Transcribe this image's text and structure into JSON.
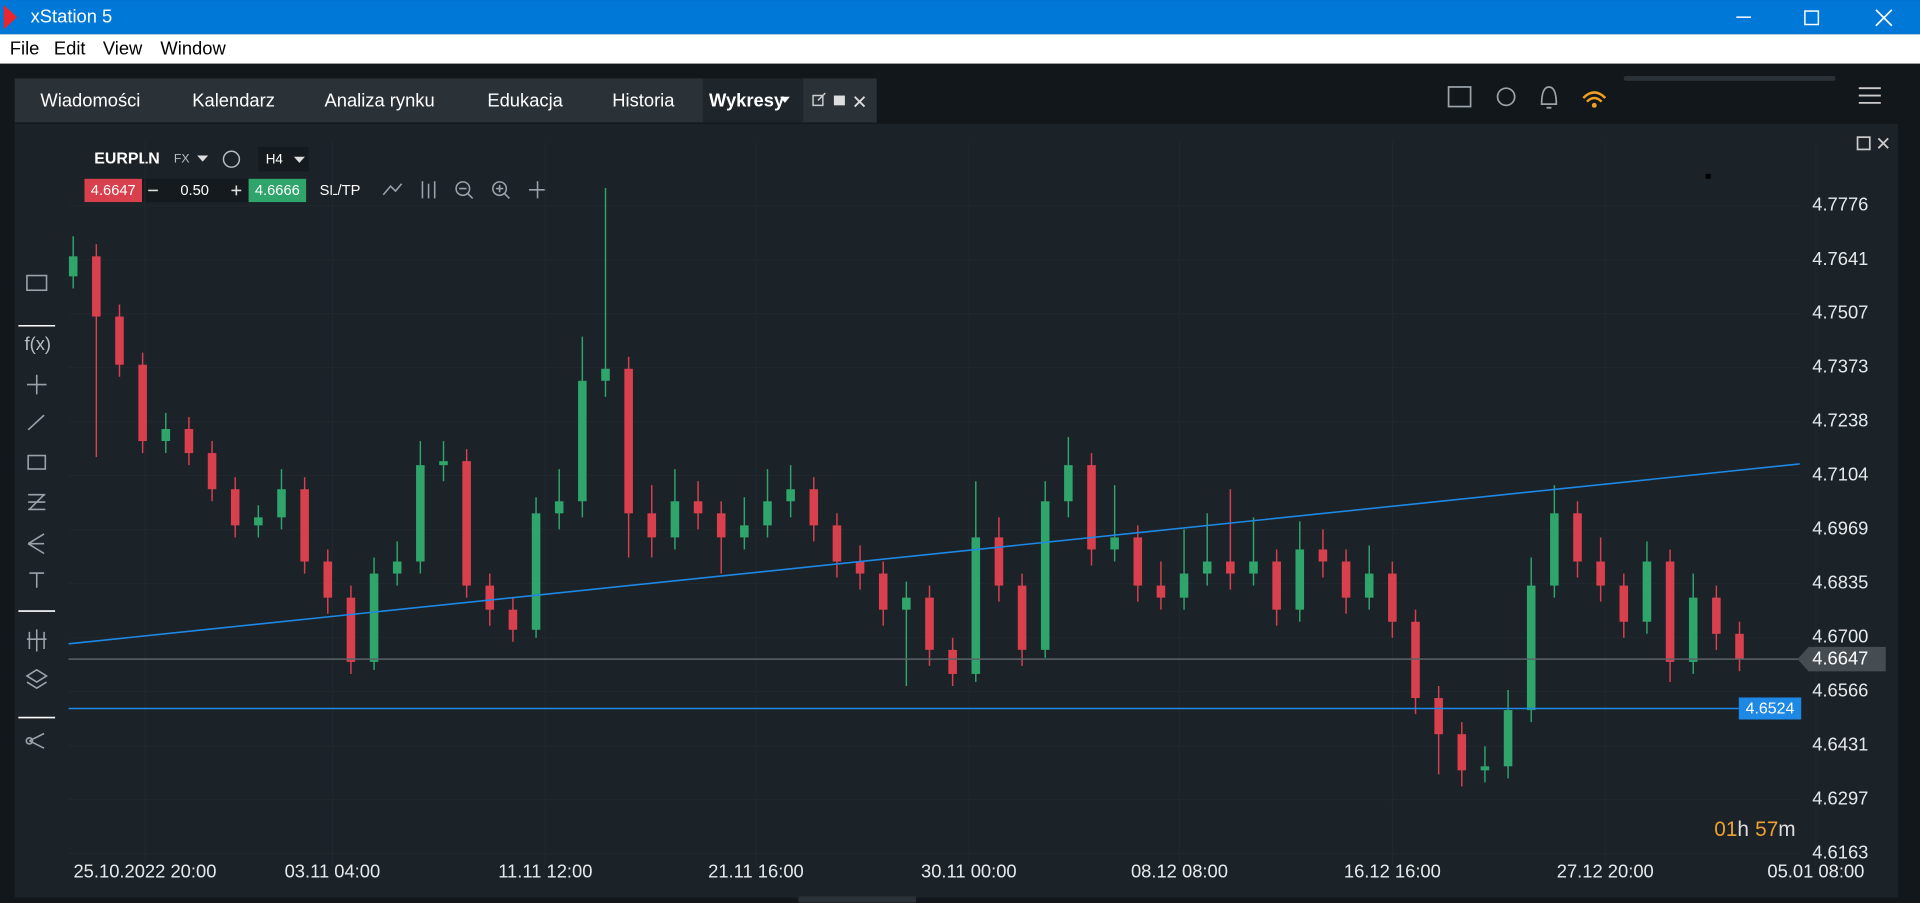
{
  "window": {
    "title": "xStation 5"
  },
  "menu": [
    "File",
    "Edit",
    "View",
    "Window"
  ],
  "tabs": [
    "Wiadomości",
    "Kalendarz",
    "Analiza rynku",
    "Edukacja",
    "Historia",
    "Wykresy"
  ],
  "chart_toolbar": {
    "symbol": "EURPLN",
    "market": "FX",
    "interval": "H4",
    "sell": "4.6647",
    "volume": "0.50",
    "buy": "4.6666",
    "sltp": "SL/TP"
  },
  "sidebar": {
    "fx": "f(x)"
  },
  "chart_data": {
    "type": "candlestick",
    "up_color": "#2fa46b",
    "down_color": "#d8404e",
    "open": [
      4.76,
      4.765,
      4.75,
      4.738,
      4.719,
      4.722,
      4.716,
      4.707,
      4.698,
      4.7,
      4.707,
      4.689,
      4.68,
      4.664,
      4.686,
      4.689,
      4.713,
      4.714,
      4.683,
      4.677,
      4.672,
      4.701,
      4.704,
      4.734,
      4.737,
      4.701,
      4.695,
      4.704,
      4.701,
      4.695,
      4.698,
      4.704,
      4.707,
      4.698,
      4.689,
      4.686,
      4.677,
      4.68,
      4.667,
      4.661,
      4.695,
      4.683,
      4.667,
      4.704,
      4.713,
      4.692,
      4.695,
      4.683,
      4.68,
      4.686,
      4.689,
      4.686,
      4.689,
      4.677,
      4.692,
      4.689,
      4.68,
      4.686,
      4.674,
      4.655,
      4.646,
      4.637,
      4.638,
      4.652,
      4.683,
      4.701,
      4.689,
      4.683,
      4.674,
      4.689,
      4.664,
      4.68,
      4.671
    ],
    "high": [
      4.77,
      4.768,
      4.753,
      4.741,
      4.726,
      4.725,
      4.719,
      4.71,
      4.703,
      4.712,
      4.71,
      4.692,
      4.683,
      4.69,
      4.694,
      4.719,
      4.719,
      4.717,
      4.686,
      4.68,
      4.705,
      4.712,
      4.745,
      4.782,
      4.74,
      4.708,
      4.712,
      4.709,
      4.704,
      4.705,
      4.712,
      4.713,
      4.71,
      4.701,
      4.693,
      4.689,
      4.684,
      4.683,
      4.67,
      4.709,
      4.7,
      4.686,
      4.709,
      4.72,
      4.716,
      4.708,
      4.698,
      4.689,
      4.697,
      4.701,
      4.707,
      4.7,
      4.692,
      4.699,
      4.697,
      4.692,
      4.693,
      4.689,
      4.677,
      4.658,
      4.649,
      4.643,
      4.657,
      4.69,
      4.708,
      4.704,
      4.695,
      4.686,
      4.694,
      4.692,
      4.686,
      4.683,
      4.674
    ],
    "low": [
      4.757,
      4.715,
      4.735,
      4.716,
      4.716,
      4.713,
      4.704,
      4.695,
      4.695,
      4.697,
      4.686,
      4.676,
      4.661,
      4.662,
      4.683,
      4.686,
      4.709,
      4.68,
      4.673,
      4.669,
      4.67,
      4.697,
      4.7,
      4.73,
      4.69,
      4.69,
      4.692,
      4.697,
      4.686,
      4.692,
      4.695,
      4.7,
      4.694,
      4.685,
      4.682,
      4.673,
      4.658,
      4.663,
      4.658,
      4.659,
      4.679,
      4.663,
      4.665,
      4.7,
      4.688,
      4.689,
      4.679,
      4.677,
      4.677,
      4.683,
      4.682,
      4.683,
      4.673,
      4.674,
      4.685,
      4.676,
      4.677,
      4.67,
      4.651,
      4.636,
      4.633,
      4.634,
      4.635,
      4.649,
      4.68,
      4.685,
      4.679,
      4.67,
      4.671,
      4.659,
      4.661,
      4.667,
      4.6617
    ],
    "close": [
      4.765,
      4.75,
      4.738,
      4.719,
      4.722,
      4.716,
      4.707,
      4.698,
      4.7,
      4.707,
      4.689,
      4.68,
      4.664,
      4.686,
      4.689,
      4.713,
      4.714,
      4.683,
      4.677,
      4.672,
      4.701,
      4.704,
      4.734,
      4.737,
      4.701,
      4.695,
      4.704,
      4.701,
      4.695,
      4.698,
      4.704,
      4.707,
      4.698,
      4.689,
      4.686,
      4.677,
      4.68,
      4.667,
      4.661,
      4.695,
      4.683,
      4.667,
      4.704,
      4.713,
      4.692,
      4.695,
      4.683,
      4.68,
      4.686,
      4.689,
      4.686,
      4.689,
      4.677,
      4.692,
      4.689,
      4.68,
      4.686,
      4.674,
      4.655,
      4.646,
      4.637,
      4.638,
      4.652,
      4.683,
      4.701,
      4.689,
      4.683,
      4.674,
      4.689,
      4.664,
      4.68,
      4.671,
      4.6647
    ],
    "xlim": [
      -0.2,
      78
    ],
    "xticks": [
      {
        "value": 3.1,
        "label": "25.10.2022 20:00"
      },
      {
        "value": 11.2,
        "label": "03.11 04:00"
      },
      {
        "value": 20.4,
        "label": "11.11 12:00"
      },
      {
        "value": 29.5,
        "label": "21.11 16:00"
      },
      {
        "value": 38.7,
        "label": "30.11 00:00"
      },
      {
        "value": 47.8,
        "label": "08.12 08:00"
      },
      {
        "value": 57,
        "label": "16.12 16:00"
      },
      {
        "value": 66.2,
        "label": "27.12 20:00"
      },
      {
        "value": 75.3,
        "label": "05.01 08:00"
      }
    ],
    "ylim": [
      4.6133,
      4.7936
    ],
    "yticks": [
      4.7776,
      4.7641,
      4.7507,
      4.7373,
      4.7238,
      4.7104,
      4.6969,
      4.6835,
      {
        "value": 4.67,
        "label": "4.6700"
      },
      4.6566,
      4.6431,
      4.6297,
      4.6163
    ],
    "grid": true,
    "trend_line": {
      "x": [
        -0.2,
        74.6
      ],
      "y": [
        4.6685,
        4.7133
      ],
      "color": "#1e88e5"
    },
    "price_lines": [
      {
        "value": 4.6647,
        "color": "#5b6369",
        "label_color": "#454c52"
      },
      {
        "value": 4.6524,
        "color": "#1e88e5",
        "label_color": "#1e88e5"
      }
    ]
  },
  "timer": {
    "hours": "01",
    "h": "h",
    "minutes": "57",
    "m": "m"
  }
}
